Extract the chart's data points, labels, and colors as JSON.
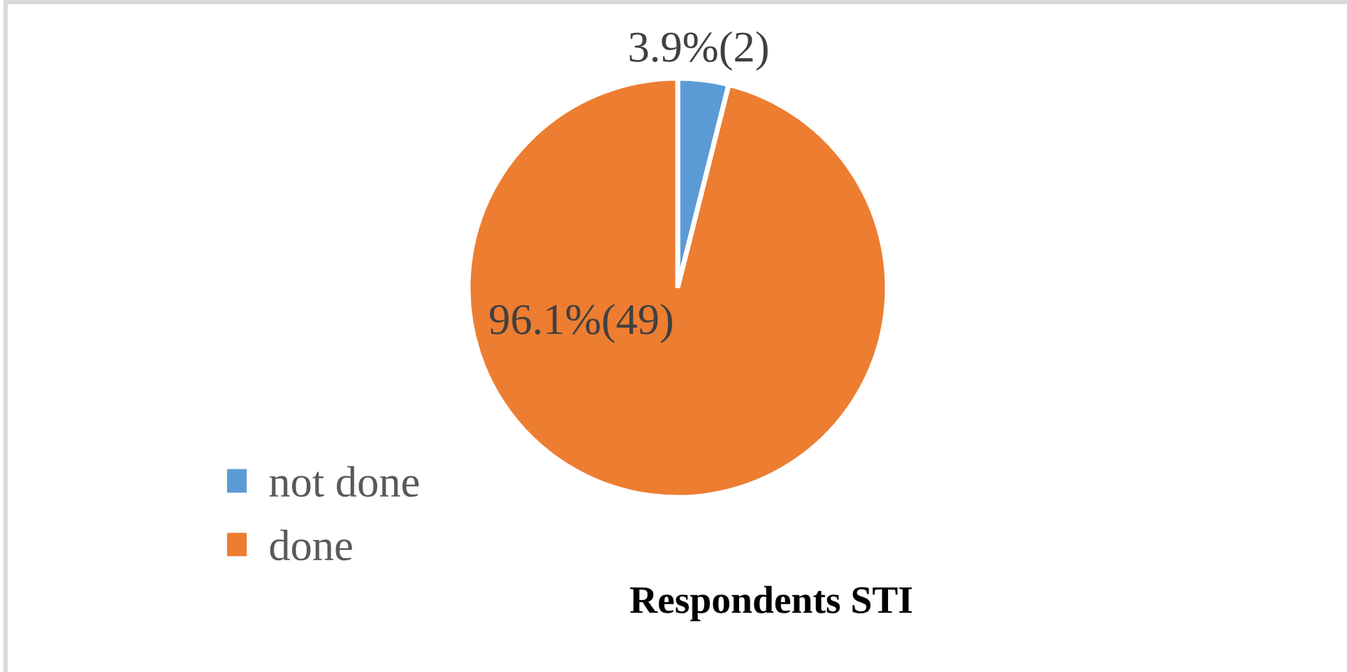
{
  "chart_data": {
    "type": "pie",
    "title": "Respondents STI",
    "categories": [
      "not done",
      "done"
    ],
    "values": [
      2,
      49
    ],
    "colors": [
      "#5b9bd5",
      "#ed7d31"
    ],
    "value_labels": [
      "3.9%(2)",
      "96.1%(49)"
    ],
    "legend": "bottom left"
  }
}
